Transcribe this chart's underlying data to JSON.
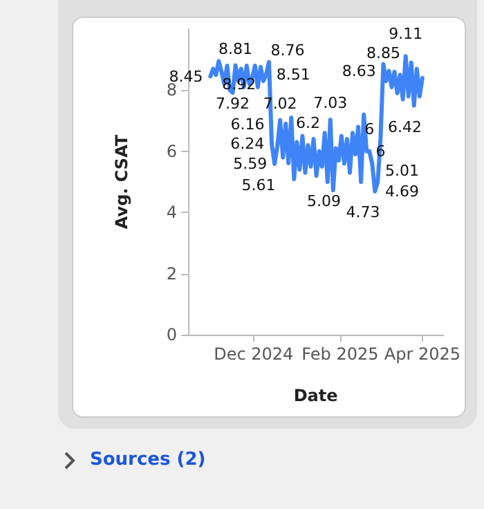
{
  "chart_data": {
    "type": "line",
    "xlabel": "Date",
    "ylabel": "Avg. CSAT",
    "x": [
      "2024-10-31",
      "2024-11-02",
      "2024-11-04",
      "2024-11-06",
      "2024-11-08",
      "2024-11-10",
      "2024-11-12",
      "2024-11-14",
      "2024-11-16",
      "2024-11-18",
      "2024-11-20",
      "2024-11-22",
      "2024-11-24",
      "2024-11-26",
      "2024-11-28",
      "2024-11-30",
      "2024-12-02",
      "2024-12-04",
      "2024-12-06",
      "2024-12-08",
      "2024-12-10",
      "2024-12-12",
      "2024-12-14",
      "2024-12-16",
      "2024-12-18",
      "2024-12-20",
      "2024-12-22",
      "2024-12-24",
      "2024-12-26",
      "2024-12-28",
      "2024-12-30",
      "2025-01-01",
      "2025-01-03",
      "2025-01-05",
      "2025-01-07",
      "2025-01-09",
      "2025-01-11",
      "2025-01-13",
      "2025-01-15",
      "2025-01-17",
      "2025-01-19",
      "2025-01-21",
      "2025-01-23",
      "2025-01-25",
      "2025-01-27",
      "2025-01-29",
      "2025-01-31",
      "2025-02-02",
      "2025-02-04",
      "2025-02-06",
      "2025-02-08",
      "2025-02-10",
      "2025-02-12",
      "2025-02-14",
      "2025-02-16",
      "2025-02-18",
      "2025-02-20",
      "2025-02-22",
      "2025-02-24",
      "2025-02-26",
      "2025-02-28",
      "2025-03-02",
      "2025-03-04",
      "2025-03-06",
      "2025-03-08",
      "2025-03-10",
      "2025-03-12",
      "2025-03-14",
      "2025-03-16",
      "2025-03-18",
      "2025-03-20",
      "2025-03-22",
      "2025-03-24",
      "2025-03-26",
      "2025-03-28",
      "2025-03-30",
      "2025-04-01"
    ],
    "series": [
      {
        "color": "#3f84f7",
        "values": [
          8.45,
          8.7,
          8.5,
          8.95,
          8.6,
          8.2,
          8.8,
          8.0,
          7.92,
          8.81,
          8.3,
          8.7,
          8.1,
          8.8,
          8.2,
          8.4,
          8.8,
          8.1,
          8.76,
          8.3,
          8.51,
          8.92,
          6.24,
          5.59,
          6.16,
          7.02,
          5.8,
          6.9,
          5.61,
          7.1,
          5.09,
          6.3,
          5.4,
          6.5,
          5.3,
          6.2,
          5.5,
          6.4,
          5.2,
          6.0,
          5.5,
          6.6,
          5.0,
          7.03,
          4.73,
          6.1,
          5.7,
          6.5,
          5.6,
          6.4,
          5.3,
          6.6,
          5.9,
          6.8,
          5.0,
          7.2,
          6,
          6,
          5.6,
          4.69,
          5.01,
          6.42,
          8.85,
          8.3,
          8.63,
          8.1,
          8.6,
          7.9,
          8.5,
          7.7,
          9.11,
          7.8,
          8.9,
          7.5,
          8.7,
          7.8,
          8.4
        ],
        "value_labels": [
          "8.45",
          null,
          null,
          null,
          null,
          null,
          null,
          null,
          "7.92",
          "8.81",
          null,
          null,
          null,
          null,
          null,
          null,
          null,
          null,
          "8.76",
          null,
          "8.51",
          "8.92",
          "6.24",
          "5.59",
          "6.16",
          "7.02",
          null,
          null,
          "5.61",
          null,
          "5.09",
          null,
          null,
          null,
          null,
          "6.2",
          null,
          null,
          null,
          null,
          null,
          null,
          null,
          "7.03",
          "4.73",
          null,
          null,
          null,
          null,
          null,
          null,
          null,
          null,
          null,
          null,
          null,
          "6",
          "6",
          null,
          "4.69",
          "5.01",
          "6.42",
          "8.85",
          null,
          "8.63",
          null,
          null,
          null,
          null,
          null,
          "9.11",
          null,
          null,
          null,
          null,
          null,
          null
        ]
      }
    ],
    "xlim": [
      "2024-10-15",
      "2025-04-16"
    ],
    "xticks": [
      {
        "value": "2024-12-01",
        "label": "Dec 2024"
      },
      {
        "value": "2025-02-01",
        "label": "Feb 2025"
      },
      {
        "value": "2025-04-01",
        "label": "Apr 2025"
      }
    ],
    "ylim": [
      0,
      10
    ],
    "yticks": [
      0,
      2,
      4,
      6,
      8
    ],
    "marker": "none",
    "line_style": "solid",
    "annotations": [
      "Sources (2)"
    ]
  }
}
